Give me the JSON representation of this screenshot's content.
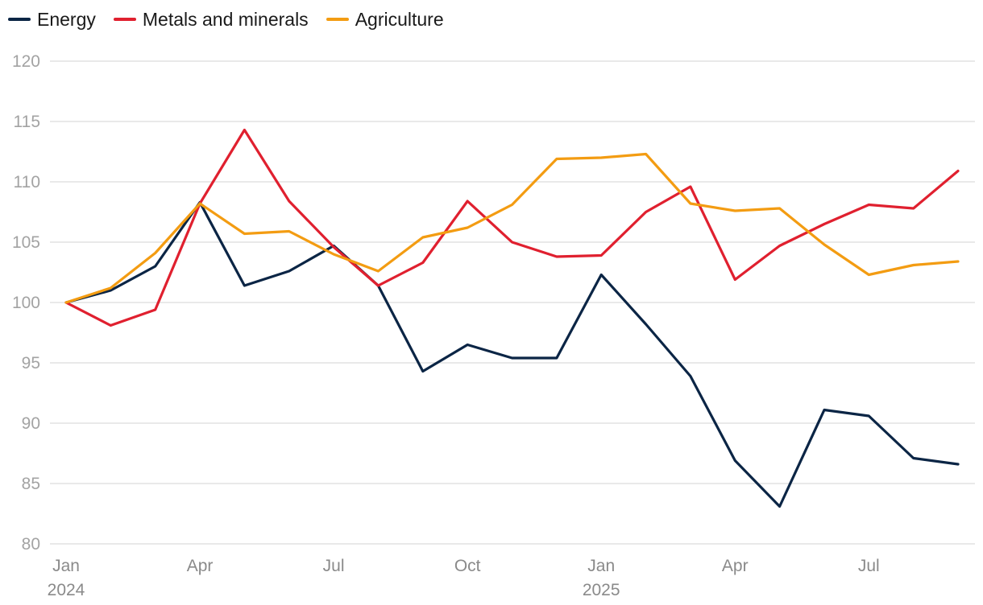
{
  "chart_data": {
    "type": "line",
    "title": "",
    "xlabel": "",
    "ylabel": "",
    "ylim": [
      80,
      120
    ],
    "yticks": [
      80,
      85,
      90,
      95,
      100,
      105,
      110,
      115,
      120
    ],
    "grid": true,
    "legend_position": "top-left",
    "x": [
      "2024-01",
      "2024-02",
      "2024-03",
      "2024-04",
      "2024-05",
      "2024-06",
      "2024-07",
      "2024-08",
      "2024-09",
      "2024-10",
      "2024-11",
      "2024-12",
      "2025-01",
      "2025-02",
      "2025-03",
      "2025-04",
      "2025-05",
      "2025-06",
      "2025-07",
      "2025-08",
      "2025-09"
    ],
    "xtick_labels": [
      {
        "month": "Jan",
        "year": "2024",
        "x": "2024-01"
      },
      {
        "month": "Apr",
        "year": "",
        "x": "2024-04"
      },
      {
        "month": "Jul",
        "year": "",
        "x": "2024-07"
      },
      {
        "month": "Oct",
        "year": "",
        "x": "2024-10"
      },
      {
        "month": "Jan",
        "year": "2025",
        "x": "2025-01"
      },
      {
        "month": "Apr",
        "year": "",
        "x": "2025-04"
      },
      {
        "month": "Jul",
        "year": "",
        "x": "2025-07"
      }
    ],
    "series": [
      {
        "name": "Energy",
        "color": "#0b2545",
        "values": [
          100,
          101,
          103,
          108.3,
          101.4,
          102.6,
          104.7,
          101.4,
          94.3,
          96.5,
          95.4,
          95.4,
          102.3,
          98.2,
          93.9,
          86.9,
          83.1,
          91.1,
          90.6,
          87.1,
          86.6
        ]
      },
      {
        "name": "Metals and minerals",
        "color": "#e0202f",
        "values": [
          100,
          98.1,
          99.4,
          108.2,
          114.3,
          108.4,
          104.6,
          101.4,
          103.3,
          108.4,
          105,
          103.8,
          103.9,
          107.5,
          109.6,
          101.9,
          104.7,
          106.5,
          108.1,
          107.8,
          110.9
        ]
      },
      {
        "name": "Agriculture",
        "color": "#f39c12",
        "values": [
          100,
          101.2,
          104.1,
          108.2,
          105.7,
          105.9,
          104,
          102.6,
          105.4,
          106.2,
          108.1,
          111.9,
          112,
          112.3,
          108.2,
          107.6,
          107.8,
          104.8,
          102.3,
          103.1,
          103.4
        ]
      }
    ]
  }
}
